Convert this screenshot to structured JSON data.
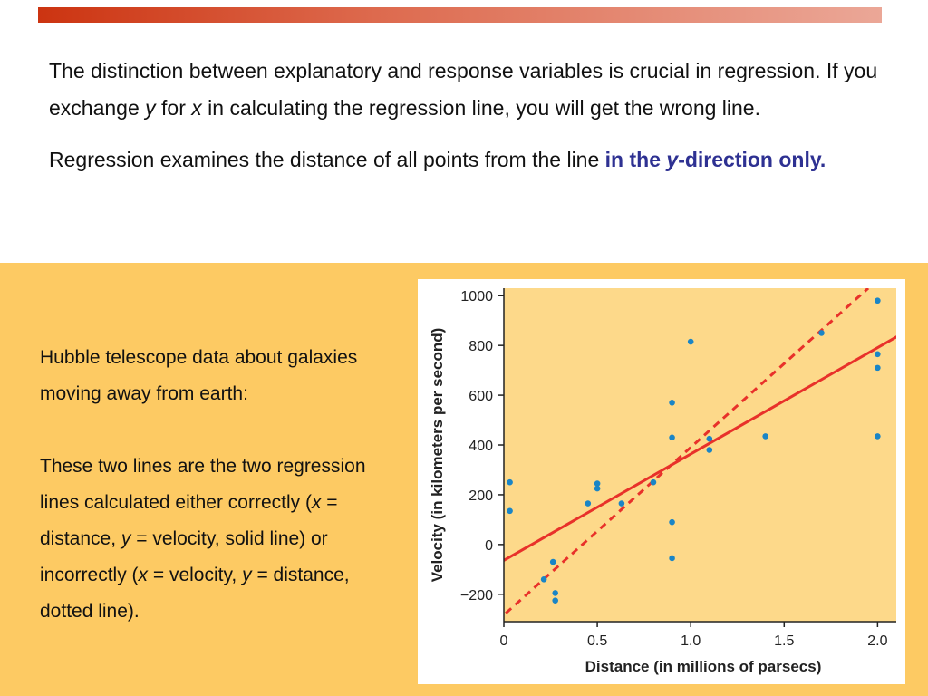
{
  "intro": {
    "p1": {
      "a": "The distinction between explanatory and response variables is crucial in regression. If you exchange ",
      "y": "y",
      "b": " for ",
      "x": "x",
      "c": " in calculating the regression line, you will get the wrong line."
    },
    "p2": {
      "a": "Regression examines the distance of all points from the line ",
      "hl1": "in the ",
      "hly": "y",
      "hl2": "-direction only."
    }
  },
  "description": {
    "p1": "Hubble telescope data about galaxies moving away from earth:",
    "p2": {
      "a": "These two lines are the two regression lines calculated either correctly (",
      "x1": "x",
      "b": " = distance, ",
      "y1": "y",
      "c": " = velocity, solid line) or incorrectly (",
      "x2": "x",
      "d": " = velocity, ",
      "y2": "y",
      "e": " = distance, dotted line)."
    }
  },
  "colors": {
    "top_bar": "#cc3411",
    "lower_bg": "#fdca63",
    "plot_bg": "#fdd98a",
    "highlight_text": "#2e3192",
    "points": "#1a85c6",
    "regression_line": "#e8312a"
  },
  "chart_data": {
    "type": "scatter",
    "xlabel": "Distance (in millions of parsecs)",
    "ylabel": "Velocity (in kilometers per second)",
    "xlim": [
      0,
      2.1
    ],
    "ylim": [
      -310,
      1030
    ],
    "x_ticks": [
      0,
      0.5,
      1.0,
      1.5,
      2.0
    ],
    "x_tick_labels": [
      "0",
      "0.5",
      "1.0",
      "1.5",
      "2.0"
    ],
    "y_ticks": [
      -200,
      0,
      200,
      400,
      600,
      800,
      1000
    ],
    "y_tick_labels": [
      "−200",
      "0",
      "200",
      "400",
      "600",
      "800",
      "1000"
    ],
    "points": [
      {
        "x": 0.032,
        "y": 250
      },
      {
        "x": 0.032,
        "y": 135
      },
      {
        "x": 0.214,
        "y": -140
      },
      {
        "x": 0.263,
        "y": -70
      },
      {
        "x": 0.275,
        "y": -195
      },
      {
        "x": 0.275,
        "y": -225
      },
      {
        "x": 0.45,
        "y": 165
      },
      {
        "x": 0.5,
        "y": 245
      },
      {
        "x": 0.5,
        "y": 225
      },
      {
        "x": 0.63,
        "y": 165
      },
      {
        "x": 0.8,
        "y": 250
      },
      {
        "x": 0.9,
        "y": 570
      },
      {
        "x": 0.9,
        "y": 430
      },
      {
        "x": 0.9,
        "y": 90
      },
      {
        "x": 0.9,
        "y": -55
      },
      {
        "x": 1.0,
        "y": 815
      },
      {
        "x": 1.1,
        "y": 425
      },
      {
        "x": 1.1,
        "y": 380
      },
      {
        "x": 1.4,
        "y": 435
      },
      {
        "x": 1.7,
        "y": 850
      },
      {
        "x": 2.0,
        "y": 980
      },
      {
        "x": 2.0,
        "y": 765
      },
      {
        "x": 2.0,
        "y": 710
      },
      {
        "x": 2.0,
        "y": 435
      }
    ],
    "lines": [
      {
        "style": "solid",
        "x": [
          -0.08,
          2.11
        ],
        "y": [
          -98,
          838
        ]
      },
      {
        "style": "dashed",
        "x": [
          -0.04,
          1.95
        ],
        "y": [
          -310,
          1030
        ]
      }
    ]
  }
}
